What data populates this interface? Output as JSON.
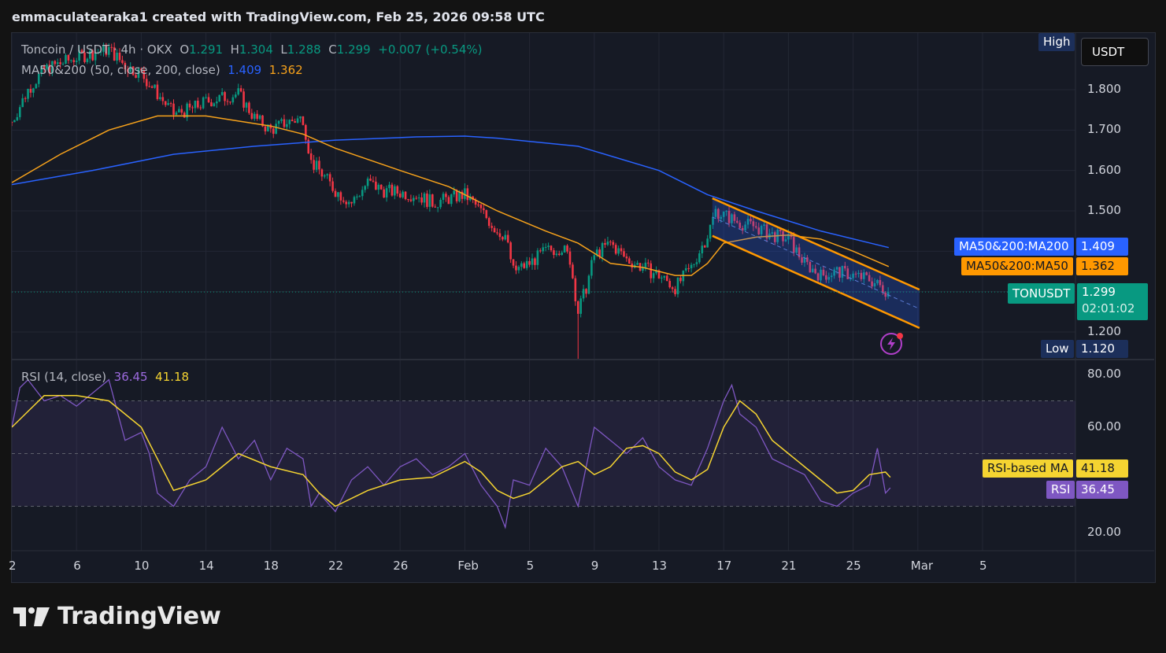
{
  "header": {
    "credit": "emmaculatearaka1 created with TradingView.com, Feb 25, 2026 09:58 UTC"
  },
  "legend": {
    "symbol": "Toncoin / USDT · 4h · OKX",
    "o_label": "O",
    "o": "1.291",
    "h_label": "H",
    "h": "1.304",
    "l_label": "L",
    "l": "1.288",
    "c_label": "C",
    "c": "1.299",
    "change": "+0.007 (+0.54%)",
    "ma_title": "MA50&200 (50, close, 200, close)",
    "ma200": "1.409",
    "ma50": "1.362",
    "rsi_title": "RSI (14, close)",
    "rsi": "36.45",
    "rsi_ma": "41.18"
  },
  "currency_button": "USDT",
  "price_tags": {
    "high_label": "High",
    "ma200_label": "MA50&200:MA200",
    "ma200_value": "1.409",
    "ma50_label": "MA50&200:MA50",
    "ma50_value": "1.362",
    "symbol_label": "TONUSDT",
    "last_value": "1.299",
    "countdown": "02:01:02",
    "low_label": "Low",
    "low_value": "1.120",
    "rsi_ma_label": "RSI-based MA",
    "rsi_ma_value": "41.18",
    "rsi_label": "RSI",
    "rsi_value": "36.45"
  },
  "colors": {
    "up": "#089981",
    "down": "#f23645",
    "ma200": "#2962ff",
    "ma50": "#f7a21b",
    "rsi": "#7e57c2",
    "rsi_ma": "#f5d431",
    "channel": "#ff9800"
  },
  "brand": "TradingView",
  "x_ticks": [
    "2",
    "6",
    "10",
    "14",
    "18",
    "22",
    "26",
    "Feb",
    "5",
    "9",
    "13",
    "17",
    "21",
    "25",
    "Mar",
    "5"
  ],
  "chart_data": [
    {
      "type": "candlestick",
      "title": "Toncoin / USDT · 4h · OKX",
      "x_unit": "days since Jan 2",
      "ylim": [
        1.1,
        1.93
      ],
      "y_ticks": [
        "1.800",
        "1.700",
        "1.600",
        "1.500",
        "1.200"
      ],
      "close_path": [
        [
          0,
          1.72
        ],
        [
          1,
          1.8
        ],
        [
          2,
          1.85
        ],
        [
          4,
          1.88
        ],
        [
          6,
          1.9
        ],
        [
          7,
          1.86
        ],
        [
          8,
          1.84
        ],
        [
          9,
          1.79
        ],
        [
          10,
          1.74
        ],
        [
          11,
          1.75
        ],
        [
          12,
          1.77
        ],
        [
          13,
          1.78
        ],
        [
          14,
          1.79
        ],
        [
          15,
          1.73
        ],
        [
          16,
          1.7
        ],
        [
          17,
          1.72
        ],
        [
          18,
          1.73
        ],
        [
          18.5,
          1.62
        ],
        [
          19,
          1.6
        ],
        [
          20,
          1.55
        ],
        [
          21,
          1.52
        ],
        [
          22,
          1.57
        ],
        [
          23,
          1.55
        ],
        [
          25,
          1.54
        ],
        [
          26,
          1.52
        ],
        [
          27,
          1.53
        ],
        [
          28,
          1.54
        ],
        [
          29,
          1.5
        ],
        [
          30,
          1.45
        ],
        [
          30.5,
          1.44
        ],
        [
          31,
          1.35
        ],
        [
          32,
          1.37
        ],
        [
          33,
          1.4
        ],
        [
          34,
          1.41
        ],
        [
          34.5,
          1.38
        ],
        [
          35,
          1.25
        ],
        [
          35.5,
          1.31
        ],
        [
          36,
          1.39
        ],
        [
          37,
          1.42
        ],
        [
          38,
          1.38
        ],
        [
          39,
          1.36
        ],
        [
          40,
          1.34
        ],
        [
          41,
          1.31
        ],
        [
          42,
          1.36
        ],
        [
          43,
          1.44
        ],
        [
          43.5,
          1.5
        ],
        [
          44,
          1.49
        ],
        [
          45,
          1.47
        ],
        [
          46,
          1.46
        ],
        [
          47,
          1.44
        ],
        [
          48,
          1.43
        ],
        [
          49,
          1.37
        ],
        [
          50,
          1.34
        ],
        [
          51,
          1.35
        ],
        [
          52,
          1.34
        ],
        [
          53,
          1.33
        ],
        [
          54.2,
          1.299
        ]
      ],
      "low_point": [
        35,
        1.12
      ],
      "ma200": [
        [
          0,
          1.565
        ],
        [
          5,
          1.6
        ],
        [
          10,
          1.64
        ],
        [
          15,
          1.66
        ],
        [
          20,
          1.675
        ],
        [
          25,
          1.683
        ],
        [
          28,
          1.685
        ],
        [
          30,
          1.68
        ],
        [
          35,
          1.66
        ],
        [
          40,
          1.6
        ],
        [
          43,
          1.54
        ],
        [
          46,
          1.5
        ],
        [
          50,
          1.45
        ],
        [
          54.2,
          1.409
        ]
      ],
      "ma50": [
        [
          0,
          1.57
        ],
        [
          3,
          1.64
        ],
        [
          6,
          1.7
        ],
        [
          9,
          1.735
        ],
        [
          12,
          1.735
        ],
        [
          16,
          1.71
        ],
        [
          18,
          1.69
        ],
        [
          20,
          1.655
        ],
        [
          24,
          1.6
        ],
        [
          27,
          1.56
        ],
        [
          30,
          1.5
        ],
        [
          33,
          1.45
        ],
        [
          35,
          1.42
        ],
        [
          37,
          1.37
        ],
        [
          39,
          1.36
        ],
        [
          41,
          1.34
        ],
        [
          42,
          1.34
        ],
        [
          43,
          1.37
        ],
        [
          44,
          1.42
        ],
        [
          46,
          1.435
        ],
        [
          48,
          1.44
        ],
        [
          50,
          1.43
        ],
        [
          52,
          1.4
        ],
        [
          54.2,
          1.362
        ]
      ],
      "channel": {
        "upper": [
          [
            43.3,
            1.531
          ],
          [
            56.1,
            1.305
          ]
        ],
        "lower": [
          [
            43.3,
            1.438
          ],
          [
            56.1,
            1.21
          ]
        ]
      },
      "last_price": 1.299
    },
    {
      "type": "line",
      "title": "RSI (14, close)",
      "ylim": [
        10,
        90
      ],
      "y_ticks": [
        "80.00",
        "60.00",
        "20.00"
      ],
      "bands": [
        30,
        50,
        70
      ],
      "series": [
        {
          "name": "RSI",
          "values": [
            [
              0,
              60
            ],
            [
              0.5,
              75
            ],
            [
              1,
              78
            ],
            [
              2,
              70
            ],
            [
              3,
              72
            ],
            [
              4,
              68
            ],
            [
              5,
              73
            ],
            [
              6,
              78
            ],
            [
              7,
              55
            ],
            [
              8,
              58
            ],
            [
              8.5,
              50
            ],
            [
              9,
              35
            ],
            [
              10,
              30
            ],
            [
              11,
              40
            ],
            [
              12,
              45
            ],
            [
              13,
              60
            ],
            [
              14,
              48
            ],
            [
              15,
              55
            ],
            [
              16,
              40
            ],
            [
              17,
              52
            ],
            [
              18,
              48
            ],
            [
              18.5,
              30
            ],
            [
              19,
              35
            ],
            [
              20,
              28
            ],
            [
              21,
              40
            ],
            [
              22,
              45
            ],
            [
              23,
              38
            ],
            [
              24,
              45
            ],
            [
              25,
              48
            ],
            [
              26,
              42
            ],
            [
              27,
              45
            ],
            [
              28,
              50
            ],
            [
              29,
              38
            ],
            [
              30,
              30
            ],
            [
              30.5,
              22
            ],
            [
              31,
              40
            ],
            [
              32,
              38
            ],
            [
              33,
              52
            ],
            [
              34,
              45
            ],
            [
              35,
              30
            ],
            [
              36,
              60
            ],
            [
              37,
              55
            ],
            [
              38,
              50
            ],
            [
              39,
              56
            ],
            [
              40,
              45
            ],
            [
              41,
              40
            ],
            [
              42,
              38
            ],
            [
              43,
              52
            ],
            [
              44,
              70
            ],
            [
              44.5,
              76
            ],
            [
              45,
              65
            ],
            [
              46,
              60
            ],
            [
              47,
              48
            ],
            [
              48,
              45
            ],
            [
              49,
              42
            ],
            [
              50,
              32
            ],
            [
              51,
              30
            ],
            [
              52,
              35
            ],
            [
              53,
              38
            ],
            [
              53.5,
              52
            ],
            [
              54,
              35
            ],
            [
              54.3,
              37
            ]
          ]
        },
        {
          "name": "RSI-based MA",
          "values": [
            [
              0,
              60
            ],
            [
              2,
              72
            ],
            [
              4,
              72
            ],
            [
              6,
              70
            ],
            [
              8,
              60
            ],
            [
              9,
              48
            ],
            [
              10,
              36
            ],
            [
              12,
              40
            ],
            [
              13,
              45
            ],
            [
              14,
              50
            ],
            [
              16,
              45
            ],
            [
              18,
              42
            ],
            [
              19,
              35
            ],
            [
              20,
              30
            ],
            [
              22,
              36
            ],
            [
              24,
              40
            ],
            [
              26,
              41
            ],
            [
              28,
              47
            ],
            [
              29,
              43
            ],
            [
              30,
              36
            ],
            [
              31,
              33
            ],
            [
              32,
              35
            ],
            [
              34,
              45
            ],
            [
              35,
              47
            ],
            [
              36,
              42
            ],
            [
              37,
              45
            ],
            [
              38,
              52
            ],
            [
              39,
              53
            ],
            [
              40,
              50
            ],
            [
              41,
              43
            ],
            [
              42,
              40
            ],
            [
              43,
              44
            ],
            [
              44,
              60
            ],
            [
              45,
              70
            ],
            [
              46,
              65
            ],
            [
              47,
              55
            ],
            [
              48,
              50
            ],
            [
              49,
              45
            ],
            [
              50,
              40
            ],
            [
              51,
              35
            ],
            [
              52,
              36
            ],
            [
              53,
              42
            ],
            [
              54,
              43
            ],
            [
              54.3,
              41
            ]
          ]
        }
      ]
    }
  ]
}
